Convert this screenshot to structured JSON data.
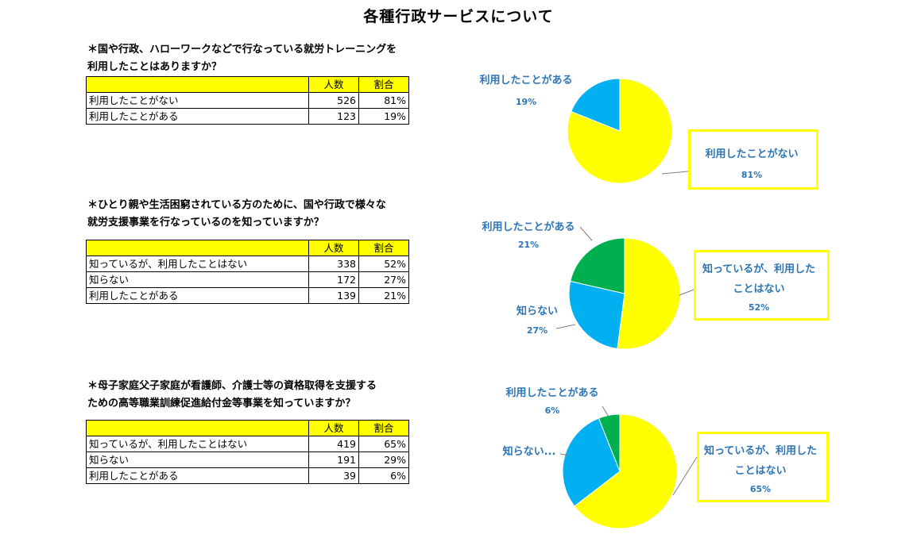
{
  "title": "各種行政サービスについて",
  "colors": {
    "yellow": "#ffff00",
    "blue": "#00b0f0",
    "green": "#00b050",
    "label": "#2e75b6"
  },
  "header": {
    "count": "人数",
    "ratio": "割合"
  },
  "sections": [
    {
      "question": "＊国や行政、ハローワークなどで行なっている就労トレーニングを\n利用したことはありますか？",
      "rows": [
        {
          "label": "利用したことがない",
          "count": "526",
          "pct": "81%"
        },
        {
          "label": "利用したことがある",
          "count": "123",
          "pct": "19%"
        }
      ]
    },
    {
      "question": "＊ひとり親や生活困窮されている方のために、国や行政で様々な\n就労支援事業を行なっているのを知っていますか？",
      "rows": [
        {
          "label": "知っているが、利用したことはない",
          "count": "338",
          "pct": "52%"
        },
        {
          "label": "知らない",
          "count": "172",
          "pct": "27%"
        },
        {
          "label": "利用したことがある",
          "count": "139",
          "pct": "21%"
        }
      ]
    },
    {
      "question": "＊母子家庭父子家庭が看護師、介護士等の資格取得を支援する\nための高等職業訓練促進給付金等事業を知っていますか？",
      "rows": [
        {
          "label": "知っているが、利用したことはない",
          "count": "419",
          "pct": "65%"
        },
        {
          "label": "知らない",
          "count": "191",
          "pct": "29%"
        },
        {
          "label": "利用したことがある",
          "count": "39",
          "pct": "6%"
        }
      ]
    }
  ],
  "chart_data": [
    {
      "type": "pie",
      "slices": [
        {
          "label": "利用したことがない",
          "value": 526,
          "pct_label": "81%",
          "color": "#ffff00"
        },
        {
          "label": "利用したことがある",
          "value": 123,
          "pct_label": "19%",
          "color": "#00b0f0"
        }
      ]
    },
    {
      "type": "pie",
      "slices": [
        {
          "label": "知っているが、利用したことはない",
          "value": 338,
          "pct_label": "52%",
          "color": "#ffff00"
        },
        {
          "label": "知らない",
          "value": 172,
          "pct_label": "27%",
          "color": "#00b0f0"
        },
        {
          "label": "利用したことがある",
          "value": 139,
          "pct_label": "21%",
          "color": "#00b050"
        }
      ]
    },
    {
      "type": "pie",
      "slices": [
        {
          "label": "知っているが、利用したことはない",
          "value": 419,
          "pct_label": "65%",
          "color": "#ffff00"
        },
        {
          "label": "知らない...",
          "value": 191,
          "pct_label": "",
          "color": "#00b0f0"
        },
        {
          "label": "利用したことがある",
          "value": 39,
          "pct_label": "6%",
          "color": "#00b050"
        }
      ]
    }
  ]
}
